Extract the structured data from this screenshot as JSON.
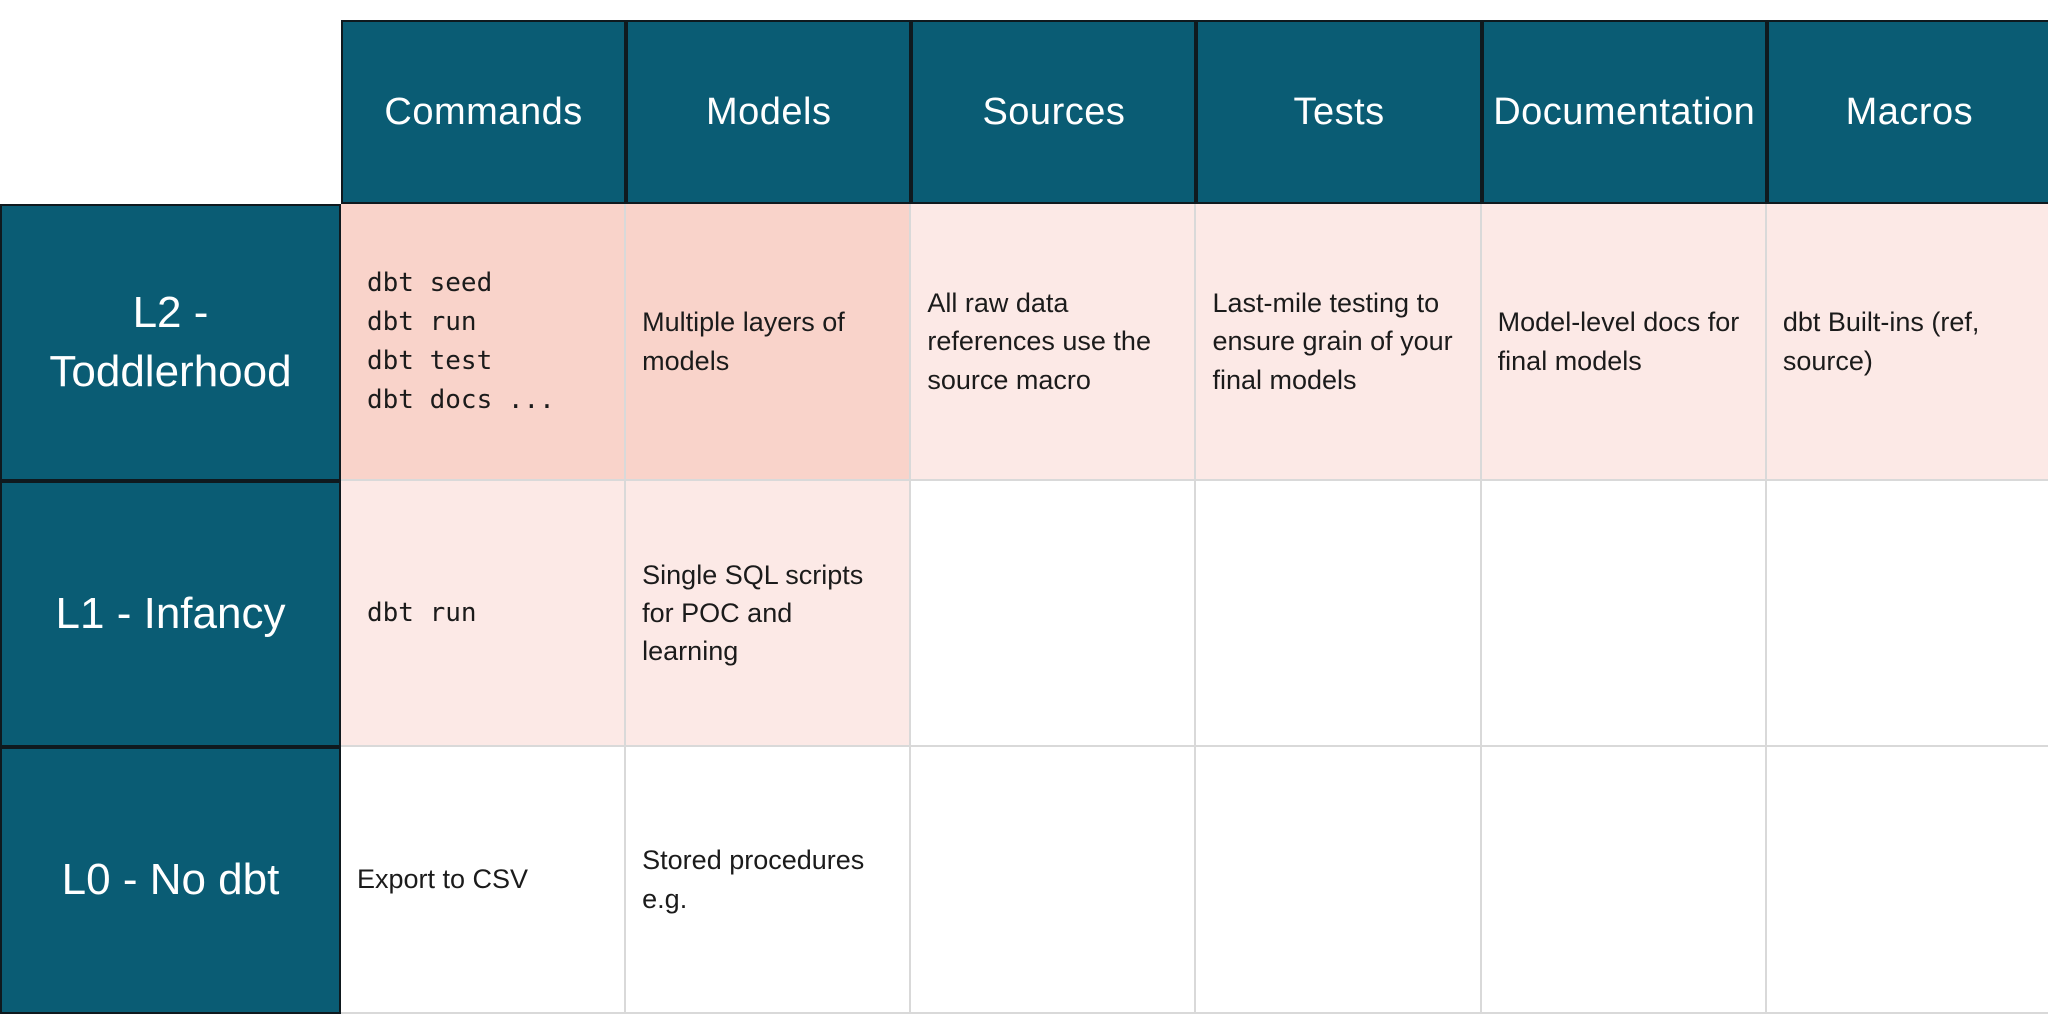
{
  "colors": {
    "header_teal": "#0a5c74",
    "header_border": "#0f191e",
    "highlight_strong": "#f9d3ca",
    "highlight_soft": "#fce9e6",
    "grid_line": "#d9d9d9",
    "header_text": "#ffffff",
    "body_text": "#1b1b1b"
  },
  "table": {
    "columns": [
      {
        "label": "Commands"
      },
      {
        "label": "Models"
      },
      {
        "label": "Sources"
      },
      {
        "label": "Tests"
      },
      {
        "label": "Documentation"
      },
      {
        "label": "Macros"
      }
    ],
    "rows": [
      {
        "label": "L2 - Toddlerhood",
        "cells": {
          "commands": "dbt seed\ndbt run\ndbt test\ndbt docs ...",
          "models": "Multiple layers of models",
          "sources": "All raw data references use the source macro",
          "tests": "Last-mile testing to ensure grain of your final models",
          "documentation": "Model-level docs for final models",
          "macros": "dbt Built-ins (ref, source)"
        }
      },
      {
        "label": "L1 - Infancy",
        "cells": {
          "commands": "dbt run",
          "models": "Single SQL scripts for POC and learning",
          "sources": "",
          "tests": "",
          "documentation": "",
          "macros": ""
        }
      },
      {
        "label": "L0 - No dbt",
        "cells": {
          "commands": "Export to CSV",
          "models": "Stored procedures e.g.",
          "sources": "",
          "tests": "",
          "documentation": "",
          "macros": ""
        }
      }
    ]
  }
}
